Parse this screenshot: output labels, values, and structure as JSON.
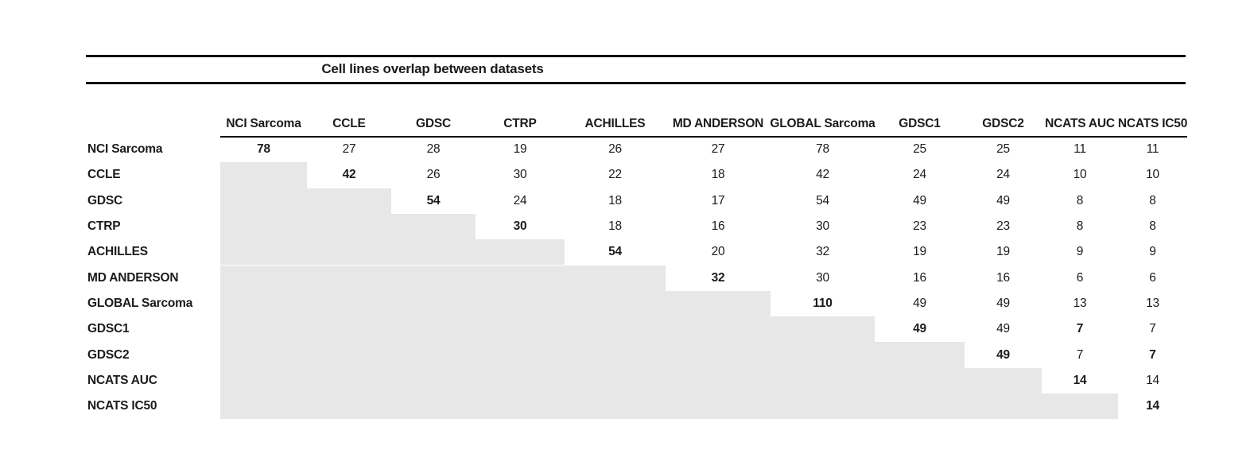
{
  "title": "Cell lines overlap between datasets",
  "colors": {
    "background": "#ffffff",
    "text": "#1b1b1b",
    "rule": "#000000",
    "empty_cell_shade": "#e7e7e7"
  },
  "table": {
    "columns": [
      "NCI Sarcoma",
      "CCLE",
      "GDSC",
      "CTRP",
      "ACHILLES",
      "MD ANDERSON",
      "GLOBAL Sarcoma",
      "GDSC1",
      "GDSC2",
      "NCATS AUC",
      "NCATS IC50"
    ],
    "rows": [
      {
        "label": "NCI Sarcoma",
        "values": [
          78,
          27,
          28,
          19,
          26,
          27,
          78,
          25,
          25,
          11,
          11
        ],
        "bold_cols": [
          0
        ]
      },
      {
        "label": "CCLE",
        "values": [
          null,
          42,
          26,
          30,
          22,
          18,
          42,
          24,
          24,
          10,
          10
        ],
        "bold_cols": [
          1
        ]
      },
      {
        "label": "GDSC",
        "values": [
          null,
          null,
          54,
          24,
          18,
          17,
          54,
          49,
          49,
          8,
          8
        ],
        "bold_cols": [
          2
        ]
      },
      {
        "label": "CTRP",
        "values": [
          null,
          null,
          null,
          30,
          18,
          16,
          30,
          23,
          23,
          8,
          8
        ],
        "bold_cols": [
          3
        ]
      },
      {
        "label": "ACHILLES",
        "values": [
          null,
          null,
          null,
          null,
          54,
          20,
          32,
          19,
          19,
          9,
          9
        ],
        "bold_cols": [
          4
        ]
      },
      {
        "label": "MD ANDERSON",
        "values": [
          null,
          null,
          null,
          null,
          null,
          32,
          30,
          16,
          16,
          6,
          6
        ],
        "bold_cols": [
          5
        ]
      },
      {
        "label": "GLOBAL Sarcoma",
        "values": [
          null,
          null,
          null,
          null,
          null,
          null,
          110,
          49,
          49,
          13,
          13
        ],
        "bold_cols": [
          6
        ]
      },
      {
        "label": "GDSC1",
        "values": [
          null,
          null,
          null,
          null,
          null,
          null,
          null,
          49,
          49,
          7,
          7
        ],
        "bold_cols": [
          7,
          9
        ]
      },
      {
        "label": "GDSC2",
        "values": [
          null,
          null,
          null,
          null,
          null,
          null,
          null,
          null,
          49,
          7,
          7
        ],
        "bold_cols": [
          8,
          10
        ]
      },
      {
        "label": "NCATS AUC",
        "values": [
          null,
          null,
          null,
          null,
          null,
          null,
          null,
          null,
          null,
          14,
          14
        ],
        "bold_cols": [
          9
        ]
      },
      {
        "label": "NCATS IC50",
        "values": [
          null,
          null,
          null,
          null,
          null,
          null,
          null,
          null,
          null,
          null,
          14
        ],
        "bold_cols": [
          10
        ]
      }
    ]
  }
}
